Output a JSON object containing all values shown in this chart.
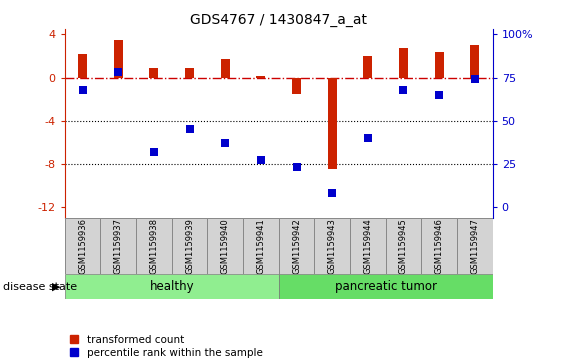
{
  "title": "GDS4767 / 1430847_a_at",
  "samples": [
    "GSM1159936",
    "GSM1159937",
    "GSM1159938",
    "GSM1159939",
    "GSM1159940",
    "GSM1159941",
    "GSM1159942",
    "GSM1159943",
    "GSM1159944",
    "GSM1159945",
    "GSM1159946",
    "GSM1159947"
  ],
  "transformed_count": [
    2.2,
    3.5,
    0.9,
    0.9,
    1.7,
    0.1,
    -1.5,
    -8.5,
    2.0,
    2.7,
    2.4,
    3.0
  ],
  "percentile_rank": [
    68,
    78,
    32,
    45,
    37,
    27,
    23,
    8,
    40,
    68,
    65,
    74
  ],
  "healthy_count": 6,
  "healthy_color": "#90EE90",
  "tumor_color": "#66DD66",
  "healthy_label": "healthy",
  "tumor_label": "pancreatic tumor",
  "disease_state_label": "disease state",
  "bar_color": "#CC2200",
  "dot_color": "#0000CC",
  "hline_color": "#CC0000",
  "ylim": [
    -13,
    4.5
  ],
  "y_ticks_left": [
    -12,
    -8,
    -4,
    0,
    4
  ],
  "right_axis_ticks": [
    0,
    25,
    50,
    75,
    100
  ],
  "right_axis_tick_labels": [
    "0",
    "25",
    "50",
    "75",
    "100%"
  ],
  "legend_label1": "transformed count",
  "legend_label2": "percentile rank within the sample",
  "bar_width": 0.25,
  "dot_size": 40
}
